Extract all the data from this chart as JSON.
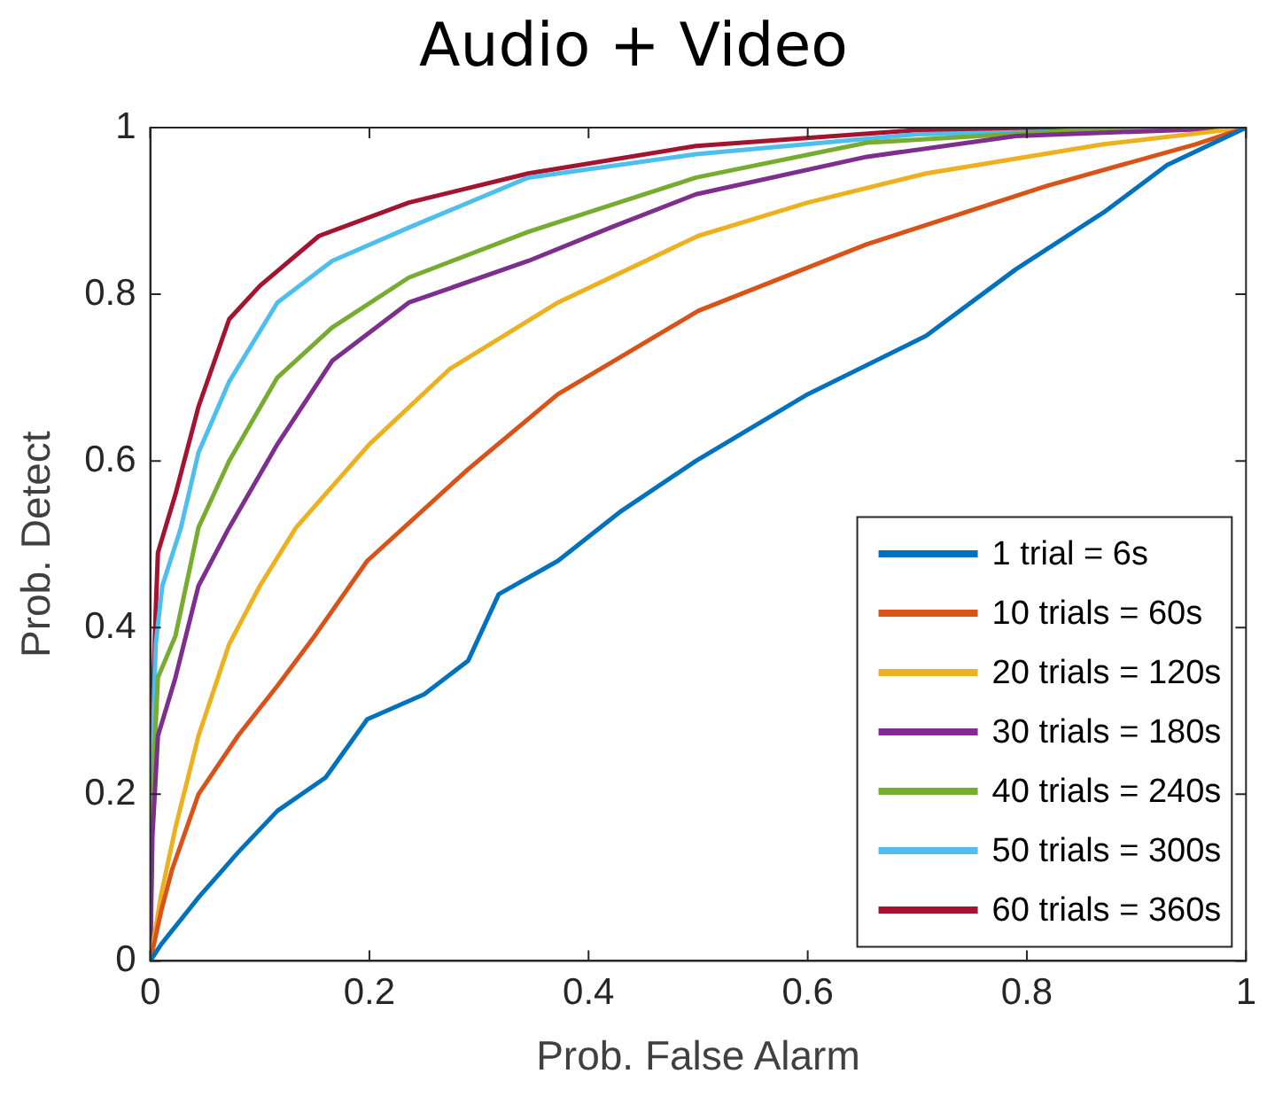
{
  "chart_data": {
    "type": "line",
    "title": "Audio + Video",
    "xlabel": "Prob. False Alarm",
    "ylabel": "Prob. Detect",
    "xlim": [
      0,
      1
    ],
    "ylim": [
      0,
      1
    ],
    "xticks": [
      0,
      0.2,
      0.4,
      0.6,
      0.8,
      1
    ],
    "yticks": [
      0,
      0.2,
      0.4,
      0.6,
      0.8,
      1
    ],
    "grid": false,
    "legend": "bottom right",
    "marker": "none",
    "line_style": "solid",
    "series": [
      {
        "name": "1 trial = 6s",
        "color": "#0072bd",
        "x": [
          0,
          0.01,
          0.044,
          0.08,
          0.116,
          0.16,
          0.198,
          0.25,
          0.29,
          0.318,
          0.372,
          0.43,
          0.498,
          0.6,
          0.708,
          0.79,
          0.872,
          0.928,
          1
        ],
        "values": [
          0,
          0.02,
          0.076,
          0.13,
          0.18,
          0.22,
          0.29,
          0.32,
          0.36,
          0.44,
          0.48,
          0.54,
          0.6,
          0.68,
          0.75,
          0.83,
          0.9,
          0.955,
          1
        ]
      },
      {
        "name": "10 trials = 60s",
        "color": "#d95319",
        "x": [
          0,
          0.01,
          0.02,
          0.044,
          0.08,
          0.116,
          0.15,
          0.198,
          0.29,
          0.372,
          0.5,
          0.654,
          0.818,
          0.954,
          1
        ],
        "values": [
          0,
          0.06,
          0.11,
          0.2,
          0.27,
          0.33,
          0.39,
          0.48,
          0.59,
          0.68,
          0.78,
          0.86,
          0.93,
          0.98,
          1
        ]
      },
      {
        "name": "20 trials = 120s",
        "color": "#edb120",
        "x": [
          0,
          0.01,
          0.023,
          0.044,
          0.072,
          0.1,
          0.133,
          0.2,
          0.273,
          0.372,
          0.5,
          0.6,
          0.708,
          0.87,
          1
        ],
        "values": [
          0,
          0.08,
          0.16,
          0.27,
          0.38,
          0.45,
          0.52,
          0.62,
          0.71,
          0.79,
          0.87,
          0.91,
          0.945,
          0.98,
          1
        ]
      },
      {
        "name": "30 trials = 180s",
        "color": "#7e2f8e",
        "x": [
          0,
          0.002,
          0.007,
          0.023,
          0.044,
          0.072,
          0.116,
          0.166,
          0.236,
          0.345,
          0.42,
          0.498,
          0.654,
          0.79,
          1
        ],
        "values": [
          0,
          0.15,
          0.27,
          0.34,
          0.45,
          0.52,
          0.62,
          0.72,
          0.79,
          0.84,
          0.88,
          0.92,
          0.965,
          0.99,
          1
        ]
      },
      {
        "name": "40 trials = 240s",
        "color": "#77ac30",
        "x": [
          0,
          0.002,
          0.007,
          0.023,
          0.044,
          0.072,
          0.116,
          0.166,
          0.236,
          0.345,
          0.498,
          0.654,
          0.85,
          1
        ],
        "values": [
          0,
          0.2,
          0.34,
          0.39,
          0.52,
          0.6,
          0.7,
          0.76,
          0.82,
          0.875,
          0.94,
          0.982,
          0.997,
          1
        ]
      },
      {
        "name": "50 trials = 300s",
        "color": "#4dbeee",
        "x": [
          0,
          0.002,
          0.005,
          0.011,
          0.028,
          0.044,
          0.072,
          0.116,
          0.166,
          0.236,
          0.345,
          0.498,
          0.7,
          1
        ],
        "values": [
          0,
          0.25,
          0.38,
          0.45,
          0.52,
          0.61,
          0.695,
          0.79,
          0.84,
          0.88,
          0.94,
          0.968,
          0.992,
          1
        ]
      },
      {
        "name": "60 trials = 360s",
        "color": "#a2142f",
        "x": [
          0,
          0.002,
          0.005,
          0.007,
          0.023,
          0.044,
          0.072,
          0.1,
          0.154,
          0.236,
          0.345,
          0.498,
          0.7,
          1
        ],
        "values": [
          0,
          0.3,
          0.42,
          0.49,
          0.56,
          0.665,
          0.77,
          0.81,
          0.87,
          0.91,
          0.945,
          0.978,
          0.997,
          1
        ]
      }
    ]
  }
}
